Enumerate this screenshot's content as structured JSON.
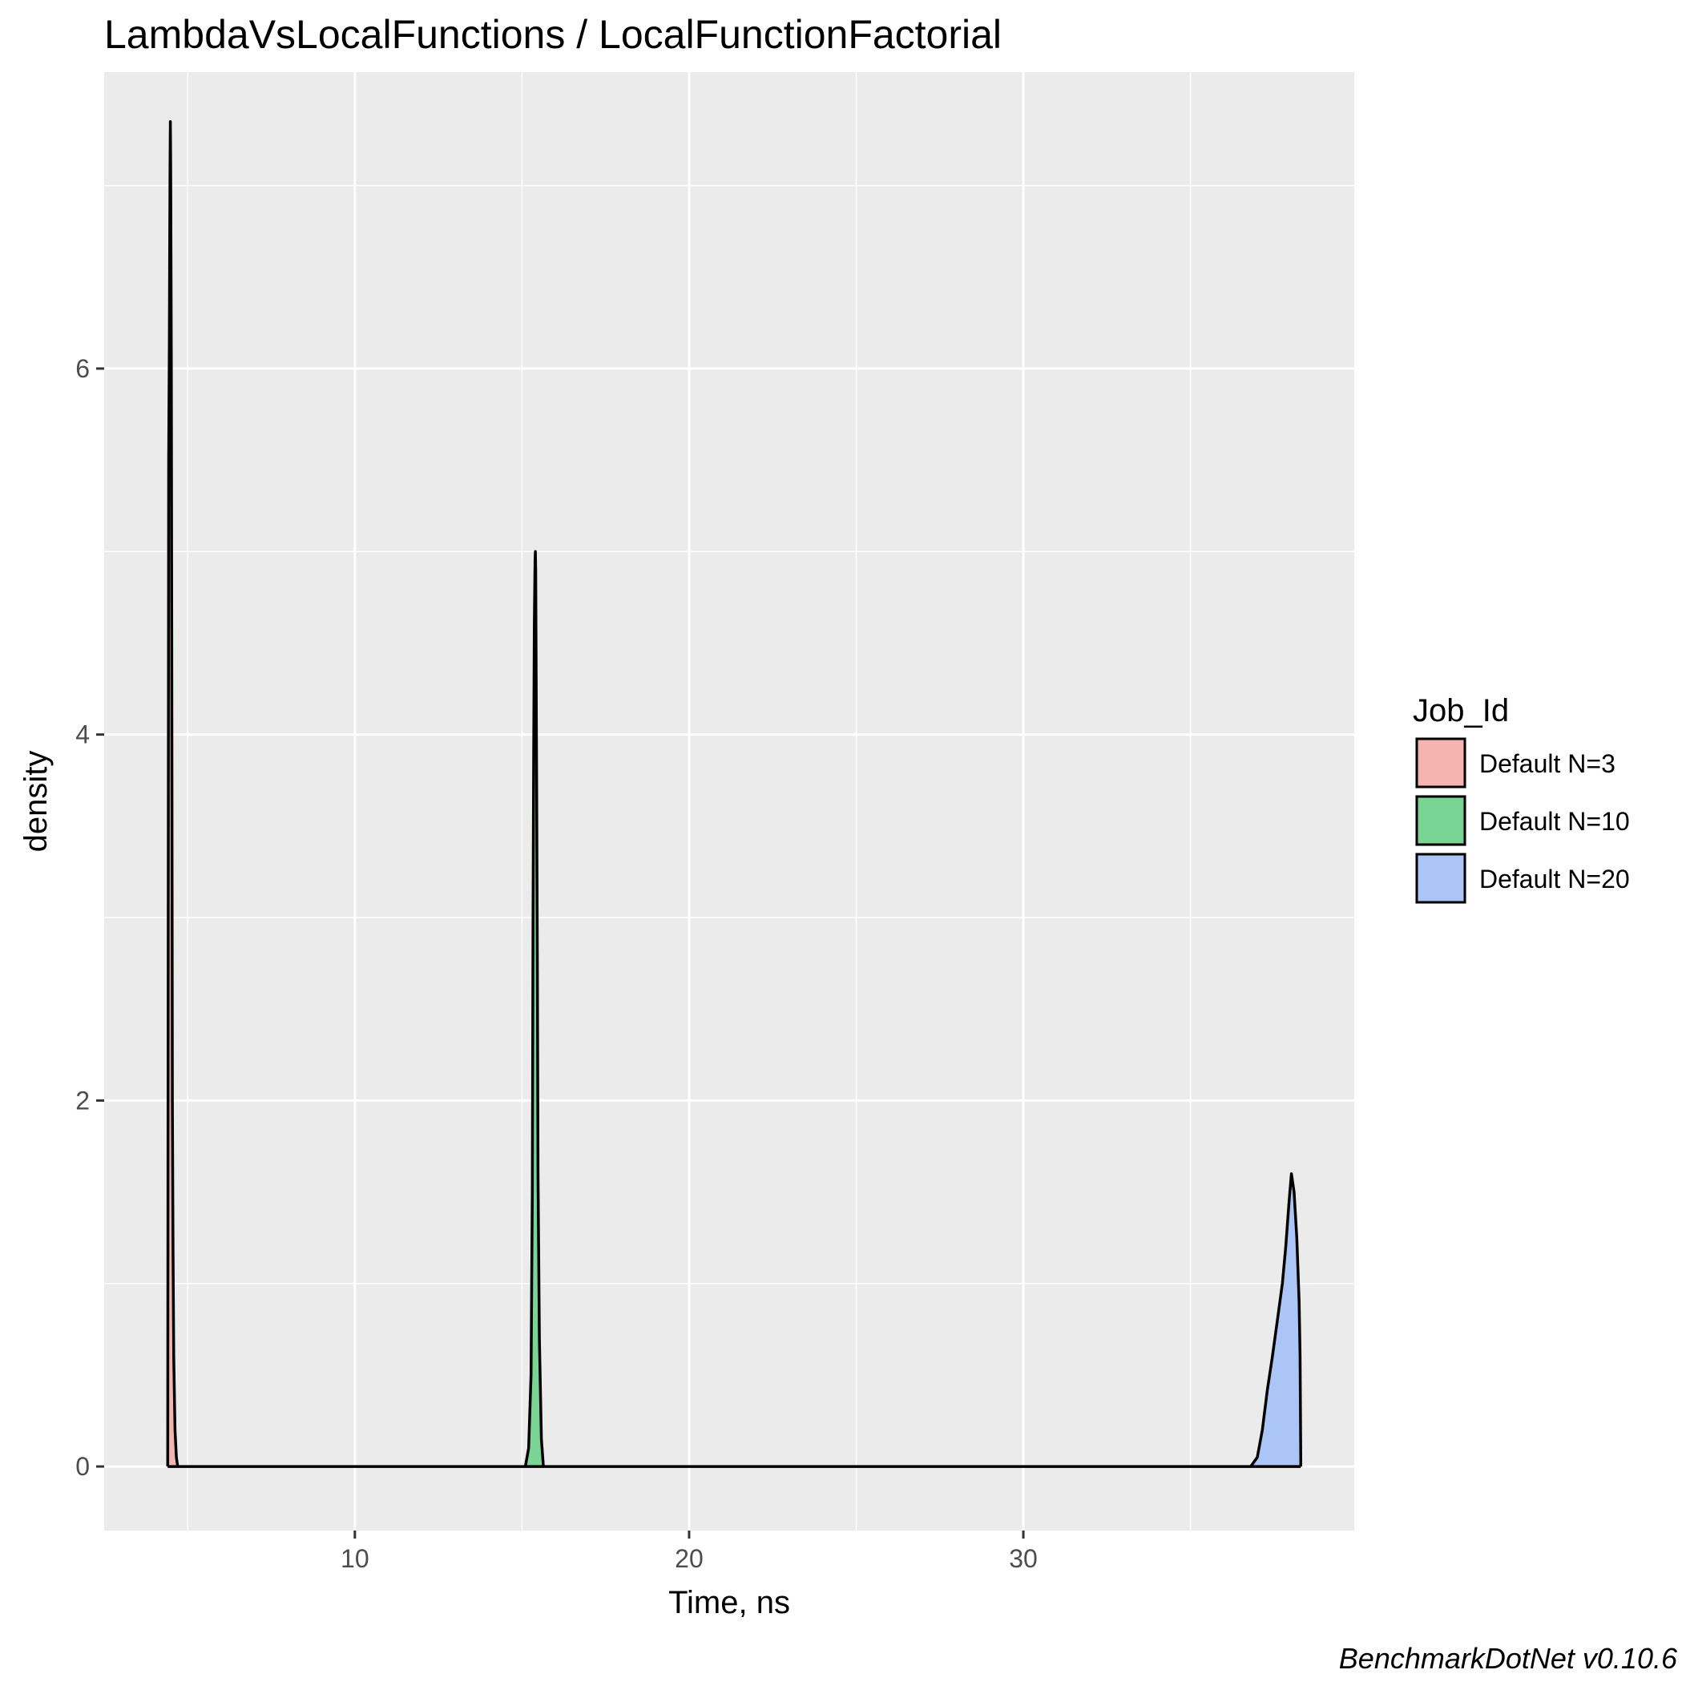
{
  "chart_data": {
    "type": "area",
    "title": "LambdaVsLocalFunctions / LocalFunctionFactorial",
    "xlabel": "Time, ns",
    "ylabel": "density",
    "xlim": [
      2.5,
      39.9
    ],
    "ylim": [
      -0.35,
      7.62
    ],
    "x_ticks": [
      10,
      20,
      30
    ],
    "x_tick_labels": [
      "10",
      "20",
      "30"
    ],
    "x_minor_ticks": [
      5,
      15,
      25,
      35
    ],
    "y_ticks": [
      0,
      2,
      4,
      6
    ],
    "y_tick_labels": [
      "0",
      "2",
      "4",
      "6"
    ],
    "y_minor_ticks": [
      1,
      3,
      5,
      7
    ],
    "grid": true,
    "legend": {
      "title": "Job_Id",
      "placement": "right"
    },
    "caption": "BenchmarkDotNet v0.10.6",
    "series": [
      {
        "name": "Default N=3",
        "color": "#f4b4af",
        "x": [
          4.4,
          4.43,
          4.45,
          4.46,
          4.47,
          4.48,
          4.49,
          4.51,
          4.52,
          4.53,
          4.54,
          4.56,
          4.58,
          4.62,
          4.66,
          4.7
        ],
        "y": [
          0,
          5.5,
          6.1,
          6.7,
          7.1,
          7.35,
          7.1,
          6.0,
          4.6,
          3.3,
          2.0,
          1.2,
          0.6,
          0.2,
          0.05,
          0
        ]
      },
      {
        "name": "Default N=10",
        "color": "#7ad494",
        "x": [
          15.1,
          15.2,
          15.27,
          15.31,
          15.33,
          15.35,
          15.37,
          15.39,
          15.4,
          15.41,
          15.42,
          15.44,
          15.46,
          15.48,
          15.52,
          15.58,
          15.64
        ],
        "y": [
          0,
          0.1,
          0.5,
          1.5,
          3.0,
          3.9,
          4.6,
          4.95,
          5.0,
          4.9,
          4.5,
          3.7,
          2.7,
          1.6,
          0.7,
          0.15,
          0
        ]
      },
      {
        "name": "Default N=20",
        "color": "#abc6f6",
        "x": [
          36.8,
          37.0,
          37.15,
          37.3,
          37.45,
          37.6,
          37.75,
          37.85,
          37.95,
          38.02,
          38.1,
          38.18,
          38.25,
          38.28,
          38.3
        ],
        "y": [
          0,
          0.05,
          0.2,
          0.42,
          0.6,
          0.8,
          1.0,
          1.2,
          1.45,
          1.6,
          1.5,
          1.25,
          0.9,
          0.6,
          0
        ]
      }
    ]
  }
}
